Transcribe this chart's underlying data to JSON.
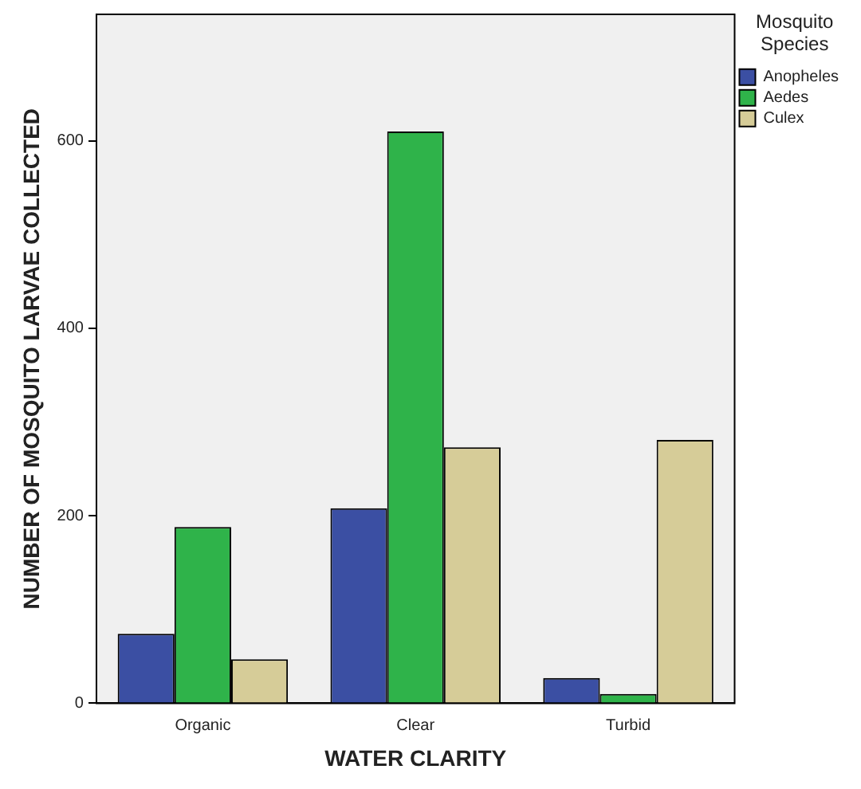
{
  "chart_data": {
    "type": "bar",
    "xlabel": "WATER CLARITY",
    "ylabel": "NUMBER OF MOSQUITO LARVAE COLLECTED",
    "legend_title": "Mosquito Species",
    "legend": "top right",
    "grid": false,
    "categories": [
      "Organic",
      "Clear",
      "Turbid"
    ],
    "series": [
      {
        "name": "Anopheles",
        "color": "#3b4fa3",
        "values": [
          74,
          208,
          27
        ]
      },
      {
        "name": "Aedes",
        "color": "#2fb34a",
        "values": [
          188,
          610,
          10
        ]
      },
      {
        "name": "Culex",
        "color": "#d6cc98",
        "values": [
          47,
          273,
          281
        ]
      }
    ],
    "ylim": [
      0,
      735
    ],
    "yticks": [
      0,
      200,
      400,
      600
    ]
  }
}
